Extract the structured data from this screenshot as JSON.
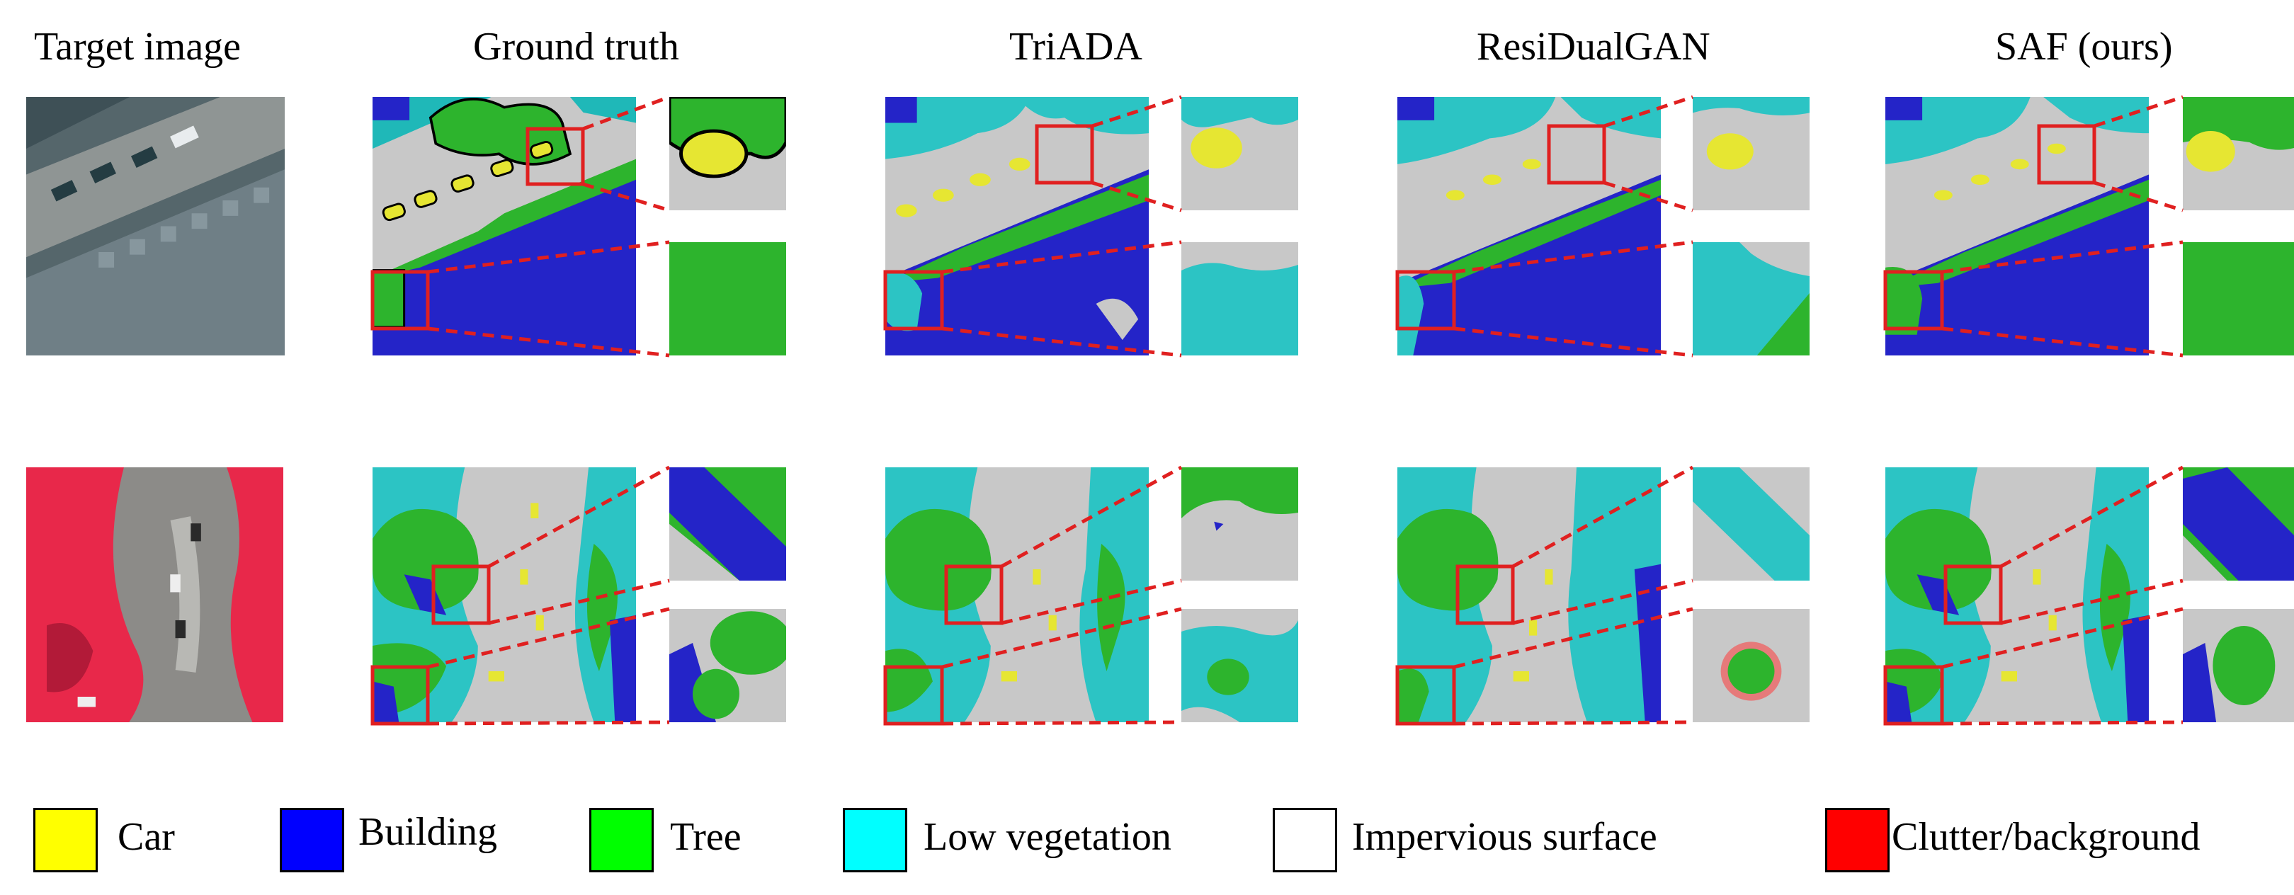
{
  "columns": [
    "Target  image",
    "Ground truth",
    "TriADA",
    "ResiDualGAN",
    "SAF (ours)"
  ],
  "legend": [
    {
      "label": "Car",
      "color": "#ffff00"
    },
    {
      "label": "Building",
      "color": "#0000ff"
    },
    {
      "label": "Tree",
      "color": "#00ff00"
    },
    {
      "label": "Low vegetation",
      "color": "#00ffff"
    },
    {
      "label": "Impervious surface",
      "color": "#ffffff"
    },
    {
      "label": "Clutter/background",
      "color": "#ff0000"
    }
  ],
  "colors": {
    "highlight_box": "#e02020",
    "impervious_render": "#c8c8c8",
    "building_render": "#2424c8",
    "tree_render": "#2db42d",
    "lowveg_render": "#2cc4c4",
    "car_render": "#e6e632",
    "target_row1_bg": "#5a6a70",
    "target_row2_bg": "#8a8a86",
    "target_row2_red": "#e8284a"
  }
}
